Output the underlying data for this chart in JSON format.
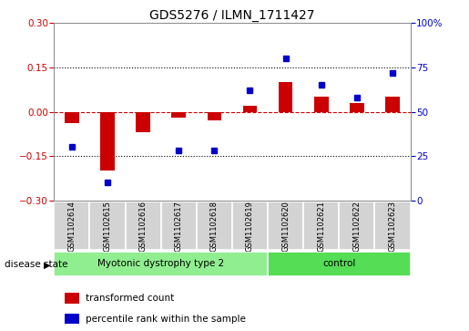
{
  "title": "GDS5276 / ILMN_1711427",
  "samples": [
    "GSM1102614",
    "GSM1102615",
    "GSM1102616",
    "GSM1102617",
    "GSM1102618",
    "GSM1102619",
    "GSM1102620",
    "GSM1102621",
    "GSM1102622",
    "GSM1102623"
  ],
  "red_values": [
    -0.04,
    -0.2,
    -0.07,
    -0.02,
    -0.03,
    0.02,
    0.1,
    0.05,
    0.03,
    0.05
  ],
  "blue_values": [
    30,
    10,
    null,
    28,
    28,
    62,
    80,
    65,
    58,
    72
  ],
  "ylim_left": [
    -0.3,
    0.3
  ],
  "ylim_right": [
    0,
    100
  ],
  "yticks_left": [
    -0.3,
    -0.15,
    0,
    0.15,
    0.3
  ],
  "yticks_right": [
    0,
    25,
    50,
    75,
    100
  ],
  "hlines_dotted": [
    0.15,
    -0.15
  ],
  "group1_label": "Myotonic dystrophy type 2",
  "group2_label": "control",
  "group1_indices": [
    0,
    1,
    2,
    3,
    4,
    5
  ],
  "group2_indices": [
    6,
    7,
    8,
    9
  ],
  "disease_state_label": "disease state",
  "legend_red": "transformed count",
  "legend_blue": "percentile rank within the sample",
  "bar_color": "#cc0000",
  "dot_color": "#0000cc",
  "group1_color": "#90ee90",
  "group2_color": "#55dd55",
  "sample_box_color": "#d3d3d3",
  "bg_color": "#ffffff",
  "left_tick_color": "#cc0000",
  "right_tick_color": "#0000cc",
  "bar_width": 0.4
}
